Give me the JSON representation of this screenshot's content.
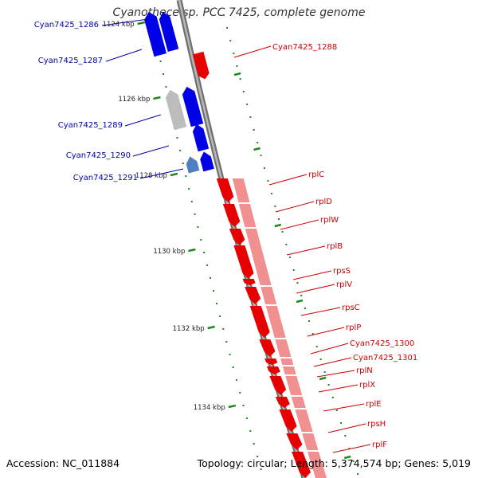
{
  "title": "Cyanothece sp. PCC 7425, complete genome",
  "accession": "Accession: NC_011884",
  "summary": "Topology: circular; Length: 5,374,574 bp; Genes: 5,019",
  "colors": {
    "forward_strand": "#e60000",
    "forward_light": "#f09090",
    "reverse_strand": "#0000e6",
    "reverse_light": "#bcbcbc",
    "other_gene": "#4e7fc0",
    "backbone": "#808080",
    "ticks": "#1c8a1c",
    "label_forward": "#cc0000",
    "label_reverse": "#0000aa"
  },
  "tick_labels": [
    "1124 kbp",
    "1126 kbp",
    "1128 kbp",
    "1130 kbp",
    "1132 kbp",
    "1134 kbp"
  ],
  "reverse_genes": [
    {
      "name": "Cyan7425_1286"
    },
    {
      "name": "Cyan7425_1287"
    },
    {
      "name": "Cyan7425_1289"
    },
    {
      "name": "Cyan7425_1290"
    },
    {
      "name": "Cyan7425_1291"
    }
  ],
  "forward_genes": [
    {
      "name": "Cyan7425_1288"
    },
    {
      "name": "rplC"
    },
    {
      "name": "rplD"
    },
    {
      "name": "rplW"
    },
    {
      "name": "rplB"
    },
    {
      "name": "rpsS"
    },
    {
      "name": "rplV"
    },
    {
      "name": "rpsC"
    },
    {
      "name": "rplP"
    },
    {
      "name": "Cyan7425_1300"
    },
    {
      "name": "Cyan7425_1301"
    },
    {
      "name": "rplN"
    },
    {
      "name": "rplX"
    },
    {
      "name": "rplE"
    },
    {
      "name": "rpsH"
    },
    {
      "name": "rplF"
    }
  ]
}
